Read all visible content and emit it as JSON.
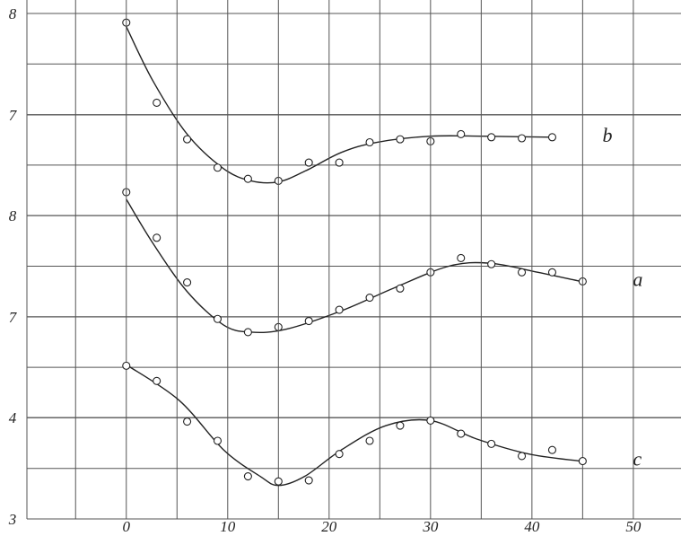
{
  "chart_data": [
    {
      "type": "line",
      "x": [
        0,
        3,
        6,
        9,
        12,
        15,
        18,
        21,
        24,
        27,
        30,
        33,
        36,
        39,
        42
      ],
      "series": [
        {
          "name": "b",
          "color": "#222",
          "values": [
            7.91,
            7.12,
            6.76,
            6.48,
            6.37,
            6.35,
            6.53,
            6.53,
            6.73,
            6.76,
            6.74,
            6.81,
            6.78,
            6.77,
            6.78
          ],
          "fit_x": [
            0,
            2.6,
            6,
            9.6,
            12.3,
            15,
            17.7,
            21.2,
            24.7,
            30,
            35.3,
            42
          ],
          "fit": [
            7.87,
            7.34,
            6.81,
            6.47,
            6.35,
            6.34,
            6.45,
            6.63,
            6.73,
            6.79,
            6.79,
            6.78
          ]
        }
      ],
      "xlim": [
        -9.8,
        54.7
      ],
      "ylim": [
        6,
        8
      ],
      "yticks": [
        7,
        8
      ]
    },
    {
      "type": "line",
      "x": [
        0,
        3,
        6,
        9,
        12,
        15,
        18,
        21,
        24,
        27,
        30,
        33,
        36,
        39,
        42,
        45
      ],
      "series": [
        {
          "name": "a",
          "color": "#222",
          "values": [
            8.23,
            7.78,
            7.34,
            6.98,
            6.85,
            6.9,
            6.96,
            7.07,
            7.19,
            7.28,
            7.44,
            7.58,
            7.52,
            7.44,
            7.44,
            7.35
          ],
          "fit_x": [
            0,
            2.6,
            6,
            9.6,
            12.3,
            15.8,
            21.2,
            26.5,
            31.8,
            35.8,
            40.6,
            44.8
          ],
          "fit": [
            8.16,
            7.73,
            7.25,
            6.92,
            6.85,
            6.88,
            7.06,
            7.29,
            7.5,
            7.53,
            7.44,
            7.35
          ]
        }
      ],
      "xlim": [
        -9.8,
        54.7
      ],
      "ylim": [
        6,
        8
      ],
      "yticks": [
        7,
        8
      ]
    },
    {
      "type": "line",
      "x": [
        0,
        3,
        6,
        9,
        12,
        15,
        18,
        21,
        24,
        27,
        30,
        33,
        36,
        39,
        42,
        45
      ],
      "series": [
        {
          "name": "c",
          "color": "#222",
          "values": [
            4.51,
            4.36,
            3.96,
            3.77,
            3.42,
            3.37,
            3.38,
            3.64,
            3.77,
            3.92,
            3.97,
            3.84,
            3.74,
            3.62,
            3.68,
            3.57
          ],
          "fit_x": [
            0,
            5.2,
            9.6,
            13.2,
            15,
            17.6,
            21.2,
            25.6,
            30,
            34.5,
            39.7,
            44.8
          ],
          "fit": [
            4.52,
            4.17,
            3.68,
            3.42,
            3.33,
            3.42,
            3.68,
            3.92,
            3.97,
            3.79,
            3.64,
            3.57
          ]
        }
      ],
      "xlim": [
        -9.8,
        54.7
      ],
      "ylim": [
        3,
        5
      ],
      "yticks": [
        3,
        4
      ],
      "xticks": [
        0,
        10,
        20,
        30,
        40,
        50
      ]
    }
  ]
}
